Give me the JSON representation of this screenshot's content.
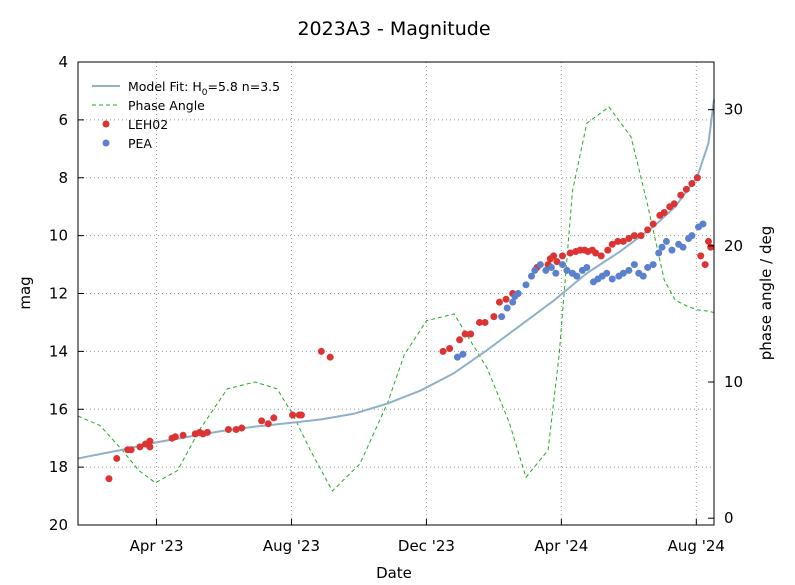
{
  "chart_data": {
    "type": "scatter",
    "title": "2023A3 - Magnitude",
    "xlabel": "Date",
    "ylabel": "mag",
    "y2label": "phase angle / deg",
    "x_range_days": [
      -40,
      535
    ],
    "x_origin_date": "2023-03-01",
    "xticks": [
      {
        "day": 31,
        "label": "Apr '23"
      },
      {
        "day": 153,
        "label": "Aug '23"
      },
      {
        "day": 275,
        "label": "Dec '23"
      },
      {
        "day": 397,
        "label": "Apr '24"
      },
      {
        "day": 519,
        "label": "Aug '24"
      }
    ],
    "ylim": [
      20,
      4
    ],
    "yticks": [
      4,
      6,
      8,
      10,
      12,
      14,
      16,
      18,
      20
    ],
    "y2lim": [
      -0.5,
      33.5
    ],
    "y2ticks": [
      0,
      10,
      20,
      30
    ],
    "grid": true,
    "legend": {
      "position": "top-left",
      "model_prefix": "Model Fit: H",
      "model_sub": "0",
      "model_suffix": "=5.8 n=3.5",
      "phase_label": "Phase Angle",
      "leh_label": "LEH02",
      "pea_label": "PEA"
    },
    "colors": {
      "model": "#8fb0c9",
      "phase": "#22aa22",
      "leh02": "#dd3333",
      "pea": "#5b80cc",
      "grid": "#999999"
    },
    "series": [
      {
        "name": "Model Fit",
        "kind": "line",
        "axis": "mag",
        "x": [
          -40,
          0,
          30,
          60,
          90,
          120,
          150,
          180,
          210,
          240,
          270,
          300,
          330,
          360,
          390,
          420,
          450,
          480,
          500,
          520,
          530,
          535
        ],
        "values": [
          17.7,
          17.4,
          17.15,
          16.95,
          16.75,
          16.6,
          16.48,
          16.35,
          16.15,
          15.8,
          15.35,
          14.75,
          13.95,
          13.1,
          12.25,
          11.3,
          10.55,
          9.7,
          9.0,
          7.95,
          6.8,
          5.3
        ]
      },
      {
        "name": "Phase Angle",
        "kind": "line",
        "axis": "phase",
        "x": [
          -40,
          -20,
          0,
          15,
          30,
          50,
          70,
          95,
          120,
          140,
          155,
          170,
          190,
          215,
          240,
          255,
          275,
          300,
          330,
          350,
          365,
          385,
          395,
          407,
          420,
          440,
          460,
          475,
          490,
          500,
          510,
          520,
          530,
          535
        ],
        "values": [
          7.5,
          6.8,
          5.0,
          3.5,
          2.6,
          3.5,
          6.5,
          9.5,
          10.0,
          9.5,
          7.5,
          5.0,
          2.0,
          4.0,
          8.5,
          12.0,
          14.5,
          15.0,
          11.0,
          7.0,
          3.0,
          5.0,
          12.0,
          24.0,
          29.0,
          30.2,
          28.0,
          23.0,
          17.5,
          16.0,
          15.6,
          15.3,
          15.2,
          15.1
        ]
      },
      {
        "name": "LEH02",
        "kind": "scatter",
        "axis": "mag",
        "x": [
          -12,
          -5,
          5,
          8,
          16,
          21,
          25,
          25,
          45,
          48,
          55,
          66,
          70,
          73,
          77,
          96,
          103,
          108,
          126,
          132,
          137,
          154,
          160,
          162,
          180,
          188,
          290,
          296,
          305,
          310,
          315,
          323,
          328,
          336,
          341,
          347,
          353,
          375,
          385,
          387,
          390,
          393,
          398,
          405,
          410,
          414,
          418,
          421,
          425,
          428,
          433,
          439,
          443,
          448,
          453,
          458,
          463,
          469,
          475,
          480,
          486,
          490,
          495,
          499,
          505,
          510,
          515,
          520,
          523,
          527,
          530,
          532
        ],
        "values": [
          18.4,
          17.7,
          17.4,
          17.4,
          17.3,
          17.2,
          17.1,
          17.3,
          17.0,
          16.95,
          16.9,
          16.85,
          16.8,
          16.85,
          16.8,
          16.7,
          16.7,
          16.65,
          16.4,
          16.5,
          16.3,
          16.2,
          16.2,
          16.2,
          14.0,
          14.2,
          14.0,
          13.9,
          13.6,
          13.4,
          13.4,
          13.0,
          13.0,
          12.8,
          12.3,
          12.2,
          12.0,
          11.1,
          11.0,
          10.8,
          10.7,
          10.9,
          10.7,
          10.6,
          10.55,
          10.5,
          10.5,
          10.55,
          10.5,
          10.6,
          10.7,
          10.5,
          10.3,
          10.2,
          10.2,
          10.1,
          10.0,
          10.0,
          9.8,
          9.6,
          9.3,
          9.2,
          9.0,
          8.9,
          8.6,
          8.4,
          8.2,
          8.0,
          10.7,
          11.0,
          10.2,
          10.4
        ]
      },
      {
        "name": "PEA",
        "kind": "scatter",
        "axis": "mag",
        "x": [
          303,
          308,
          343,
          348,
          353,
          355,
          358,
          365,
          370,
          373,
          378,
          383,
          388,
          392,
          398,
          402,
          407,
          411,
          416,
          420,
          426,
          430,
          434,
          438,
          443,
          449,
          453,
          458,
          463,
          467,
          471,
          475,
          480,
          485,
          488,
          492,
          497,
          503,
          507,
          512,
          515,
          521,
          525
        ],
        "values": [
          14.2,
          14.1,
          12.8,
          12.5,
          12.3,
          12.1,
          12.0,
          11.7,
          11.4,
          11.2,
          11.0,
          11.2,
          11.1,
          11.3,
          11.0,
          11.2,
          11.3,
          11.4,
          11.2,
          11.1,
          11.6,
          11.5,
          11.4,
          11.3,
          11.5,
          11.4,
          11.3,
          11.2,
          11.0,
          11.3,
          11.4,
          11.1,
          11.0,
          10.6,
          10.4,
          10.2,
          10.5,
          10.3,
          10.4,
          10.1,
          10.0,
          9.7,
          9.6
        ]
      }
    ]
  }
}
